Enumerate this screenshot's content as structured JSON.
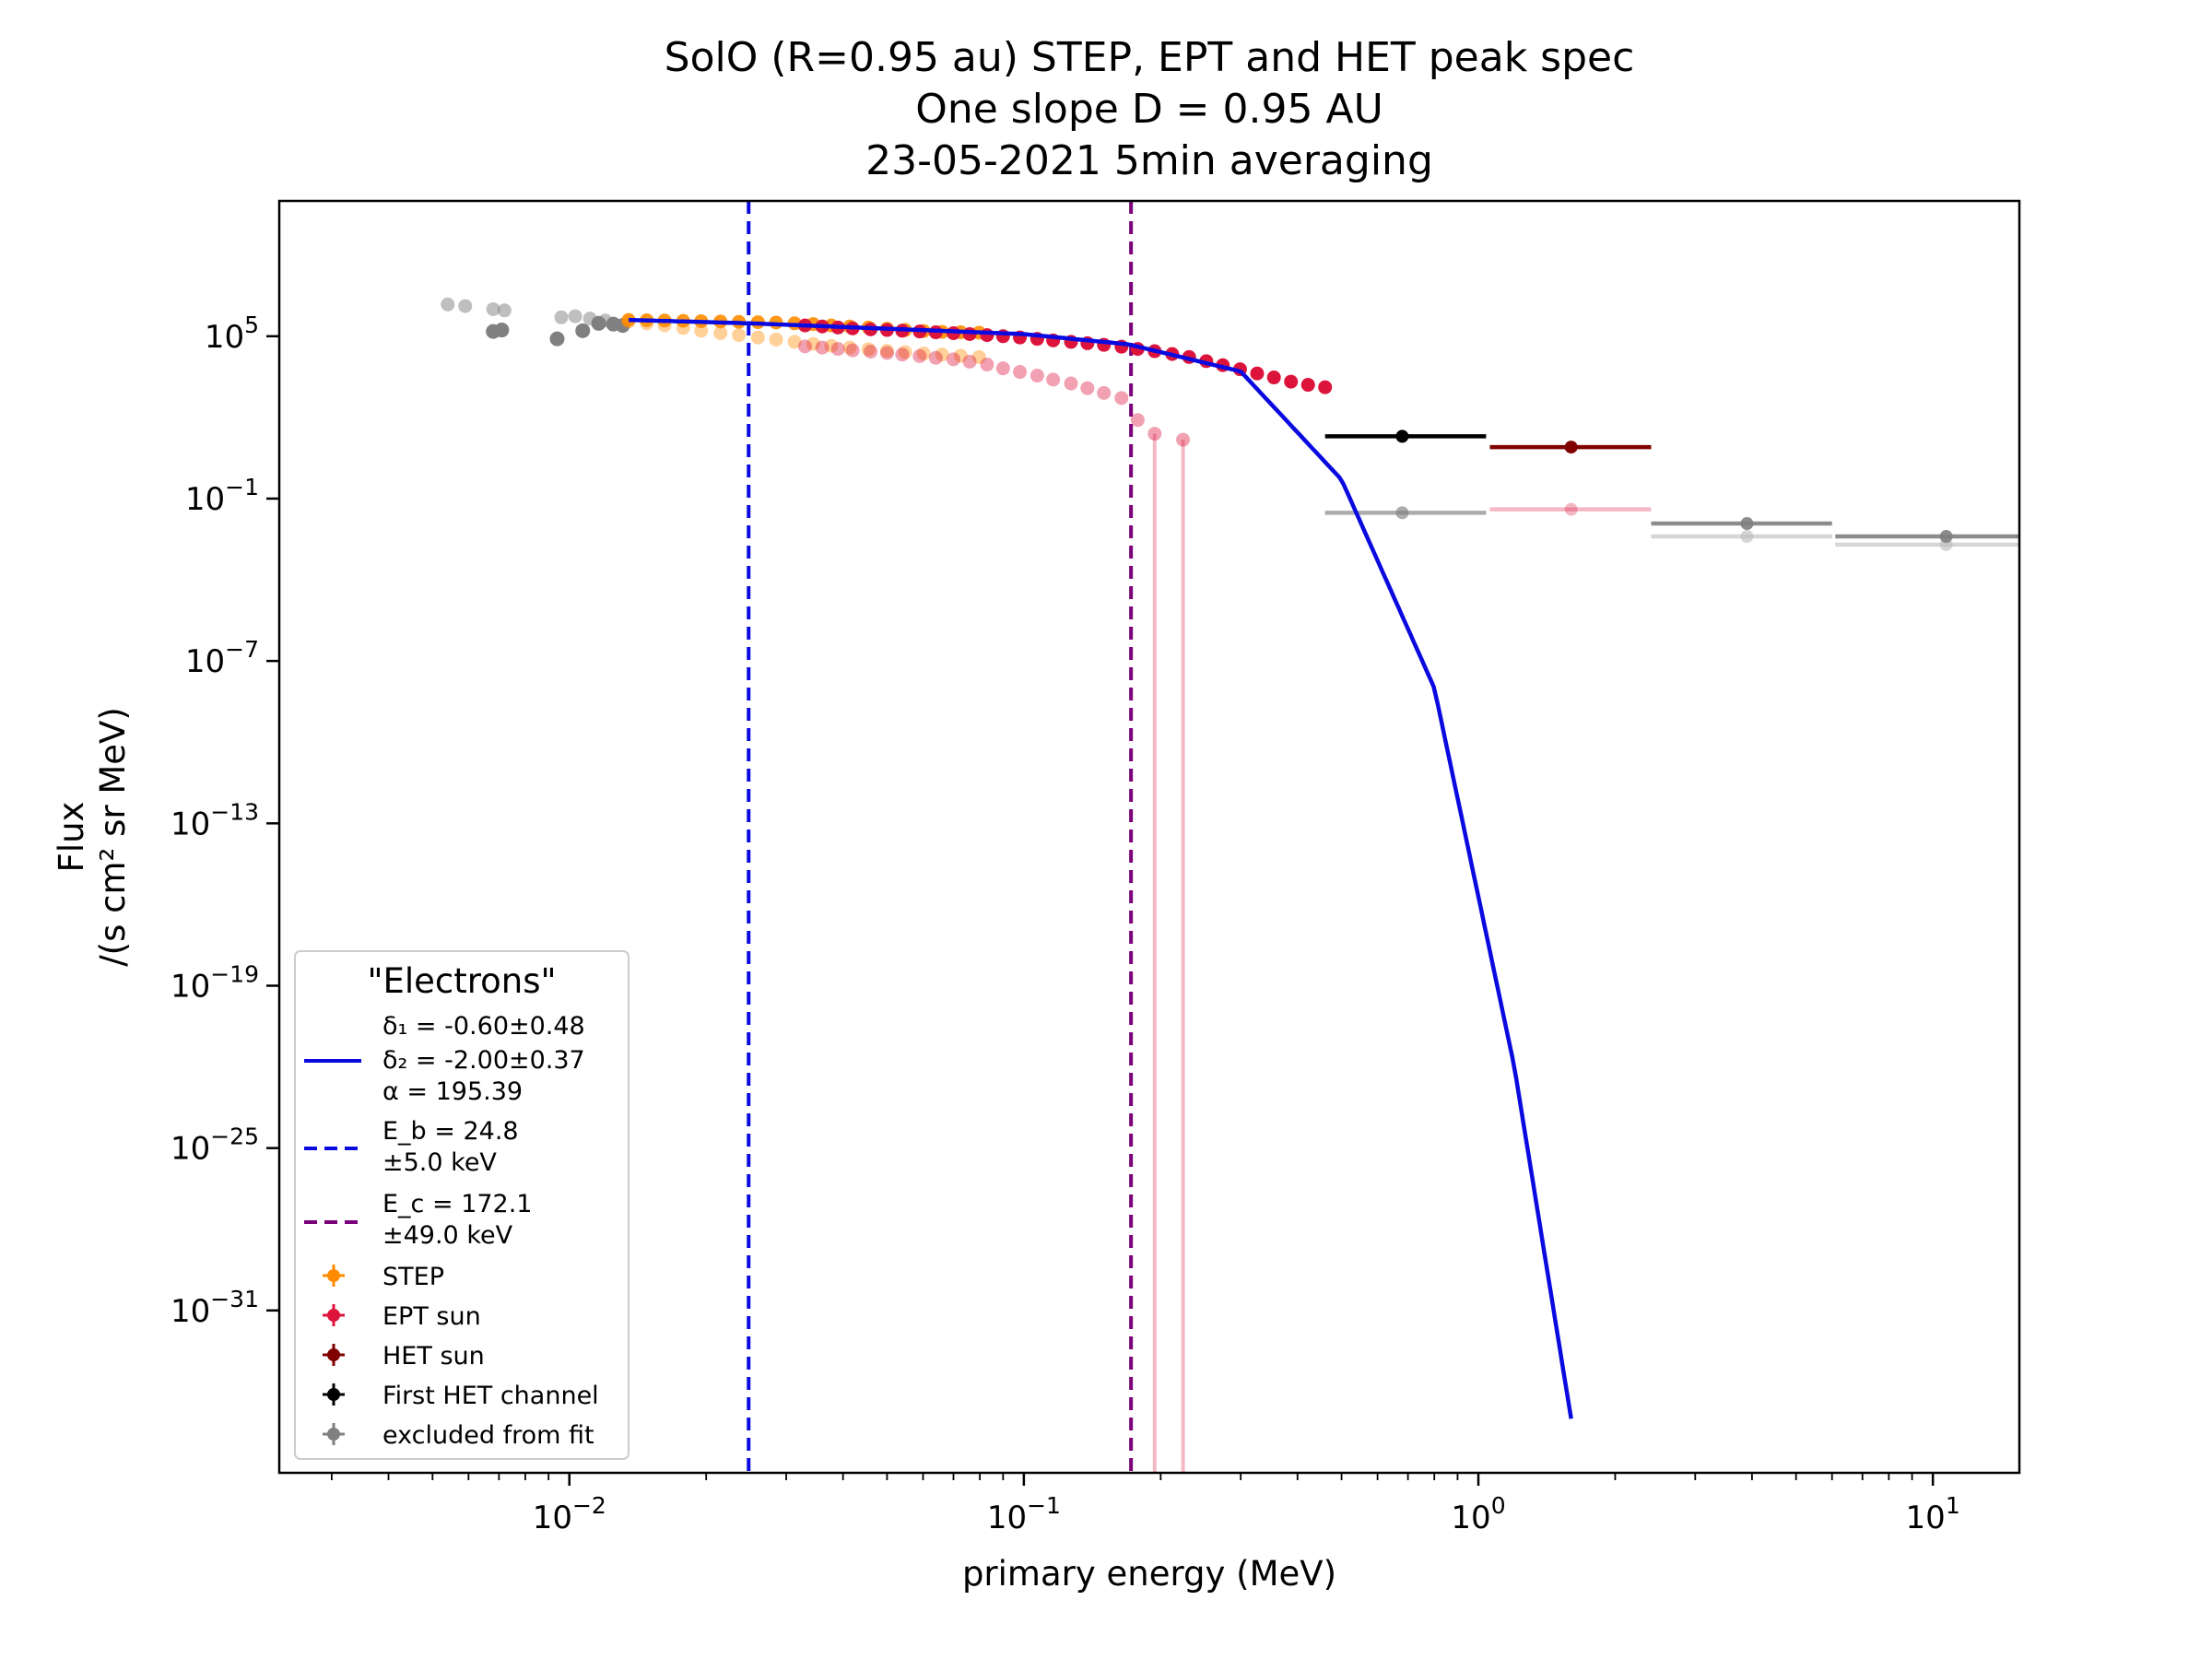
{
  "chart_data": {
    "type": "scatter",
    "title_lines": [
      "SolO  (R=0.95 au) STEP, EPT and HET  peak spec",
      "One slope D = 0.95 AU",
      "23-05-2021  5min  averaging"
    ],
    "xlabel": "primary energy (MeV)",
    "ylabel_lines": [
      "Flux",
      "/(s cm² sr MeV)"
    ],
    "xscale": "log",
    "yscale": "log",
    "xlim": [
      0.0023,
      15.5
    ],
    "ylim": [
      1e-37,
      10000000000.0
    ],
    "x_ticks": [
      {
        "value": 0.01,
        "base": "10",
        "exp": "−2"
      },
      {
        "value": 0.1,
        "base": "10",
        "exp": "−1"
      },
      {
        "value": 1,
        "base": "10",
        "exp": "0"
      },
      {
        "value": 10,
        "base": "10",
        "exp": "1"
      }
    ],
    "y_ticks": [
      {
        "value": 100000.0,
        "base": "10",
        "exp": "5"
      },
      {
        "value": 0.1,
        "base": "10",
        "exp": "−1"
      },
      {
        "value": 1e-07,
        "base": "10",
        "exp": "−7"
      },
      {
        "value": 1e-13,
        "base": "10",
        "exp": "−13"
      },
      {
        "value": 1e-19,
        "base": "10",
        "exp": "−19"
      },
      {
        "value": 1e-25,
        "base": "10",
        "exp": "−25"
      },
      {
        "value": 1e-31,
        "base": "10",
        "exp": "−31"
      }
    ],
    "legend": {
      "title": "\"Electrons\"",
      "location": "lower-left",
      "fit_lines": [
        "δ₁ = -0.60±0.48",
        "δ₂ = -2.00±0.37",
        "α = 195.39"
      ],
      "eb_lines": [
        "E_b =  24.8",
        "±5.0 keV"
      ],
      "ec_lines": [
        "E_c =  172.1",
        "±49.0 keV"
      ],
      "series_entries": [
        "STEP",
        "EPT sun",
        "HET sun",
        "First HET channel",
        "excluded from fit"
      ]
    },
    "colors": {
      "fit": "#0a0ae0",
      "eb": "#0a0ae0",
      "ec": "#7a007a",
      "step": "#ff8c00",
      "ept": "#dc143c",
      "het": "#800000",
      "first_het": "#000000",
      "excluded": "#808080"
    },
    "eb_value": 0.0248,
    "ec_value": 0.1721,
    "fit_curve": {
      "x_start": 0.0135,
      "x_end": 1.6,
      "points": [
        [
          0.0135,
          400000
        ],
        [
          0.025,
          300000
        ],
        [
          0.05,
          190000
        ],
        [
          0.1,
          120000
        ],
        [
          0.17,
          50000
        ],
        [
          0.3,
          5000
        ],
        [
          0.5,
          0.5
        ],
        [
          0.8,
          1e-08
        ],
        [
          1.2,
          1e-22
        ],
        [
          1.6,
          1e-35
        ]
      ]
    },
    "series": [
      {
        "key": "excluded_grey",
        "x": [
          0.0054,
          0.0059,
          0.0068,
          0.0072,
          0.0096,
          0.0103,
          0.0111,
          0.012
        ],
        "y": [
          1500000,
          1300000,
          1000000,
          900000,
          500000,
          550000,
          450000,
          380000
        ]
      },
      {
        "key": "excluded_dark",
        "x": [
          0.0068,
          0.0071,
          0.0094,
          0.0107,
          0.0116,
          0.0125,
          0.0131
        ],
        "y": [
          150000,
          170000,
          80000,
          160000,
          300000,
          280000,
          250000
        ]
      },
      {
        "key": "step_upper",
        "x": [
          0.0135,
          0.0148,
          0.0162,
          0.0178,
          0.0195,
          0.0215,
          0.0236,
          0.026,
          0.0285,
          0.0313,
          0.0344,
          0.0377,
          0.0414,
          0.0455,
          0.05,
          0.0548,
          0.0602,
          0.0661,
          0.0726,
          0.0797
        ],
        "y": [
          400000,
          390000,
          380000,
          370000,
          360000,
          350000,
          340000,
          330000,
          320000,
          300000,
          280000,
          250000,
          230000,
          210000,
          190000,
          170000,
          155000,
          145000,
          140000,
          135000
        ]
      },
      {
        "key": "step_lower",
        "x": [
          0.0135,
          0.0148,
          0.0162,
          0.0178,
          0.0195,
          0.0215,
          0.0236,
          0.026,
          0.0285,
          0.0313,
          0.0344,
          0.0377,
          0.0414,
          0.0455,
          0.05,
          0.0548,
          0.0602,
          0.0661,
          0.0726,
          0.0797
        ],
        "y": [
          350000,
          300000,
          250000,
          200000,
          160000,
          130000,
          110000,
          90000,
          75000,
          62000,
          52000,
          44000,
          38000,
          33000,
          29000,
          26000,
          23000,
          21000,
          19000,
          17000
        ]
      },
      {
        "key": "ept_upper",
        "x": [
          0.033,
          0.036,
          0.039,
          0.042,
          0.046,
          0.05,
          0.054,
          0.059,
          0.064,
          0.07,
          0.076,
          0.083,
          0.09,
          0.098,
          0.107,
          0.116,
          0.127,
          0.138,
          0.15,
          0.164,
          0.178,
          0.194,
          0.212,
          0.231,
          0.252,
          0.274,
          0.299,
          0.326,
          0.355,
          0.387,
          0.422,
          0.46
        ],
        "y": [
          250000,
          230000,
          210000,
          195000,
          180000,
          170000,
          160000,
          150000,
          140000,
          130000,
          120000,
          110000,
          100000,
          90000,
          80000,
          70000,
          62000,
          55000,
          48000,
          41000,
          34000,
          28000,
          22000,
          17000,
          12000,
          8500,
          6000,
          4200,
          3000,
          2100,
          1600,
          1300
        ]
      },
      {
        "key": "ept_lower",
        "x": [
          0.033,
          0.036,
          0.039,
          0.042,
          0.046,
          0.05,
          0.054,
          0.059,
          0.064,
          0.07,
          0.076,
          0.083,
          0.09,
          0.098,
          0.107,
          0.116,
          0.127,
          0.138,
          0.15,
          0.164,
          0.178,
          0.194,
          0.224
        ],
        "y": [
          42000,
          38000,
          34000,
          30000,
          27000,
          24000,
          21000,
          18500,
          16000,
          14000,
          11500,
          9000,
          6500,
          4800,
          3500,
          2500,
          1800,
          1200,
          800,
          520,
          80,
          25,
          15
        ]
      },
      {
        "key": "het_primary",
        "x": [
          0.68,
          1.6
        ],
        "y": [
          20,
          8
        ]
      },
      {
        "key": "het_faint",
        "x": [
          0.68,
          1.6
        ],
        "y": [
          0.03,
          0.04
        ]
      },
      {
        "key": "grey_high",
        "x": [
          3.9,
          10.7
        ],
        "y": [
          0.012,
          0.004
        ]
      },
      {
        "key": "grey_high_faint",
        "x": [
          3.9,
          10.7
        ],
        "y": [
          0.004,
          0.002
        ]
      }
    ]
  }
}
